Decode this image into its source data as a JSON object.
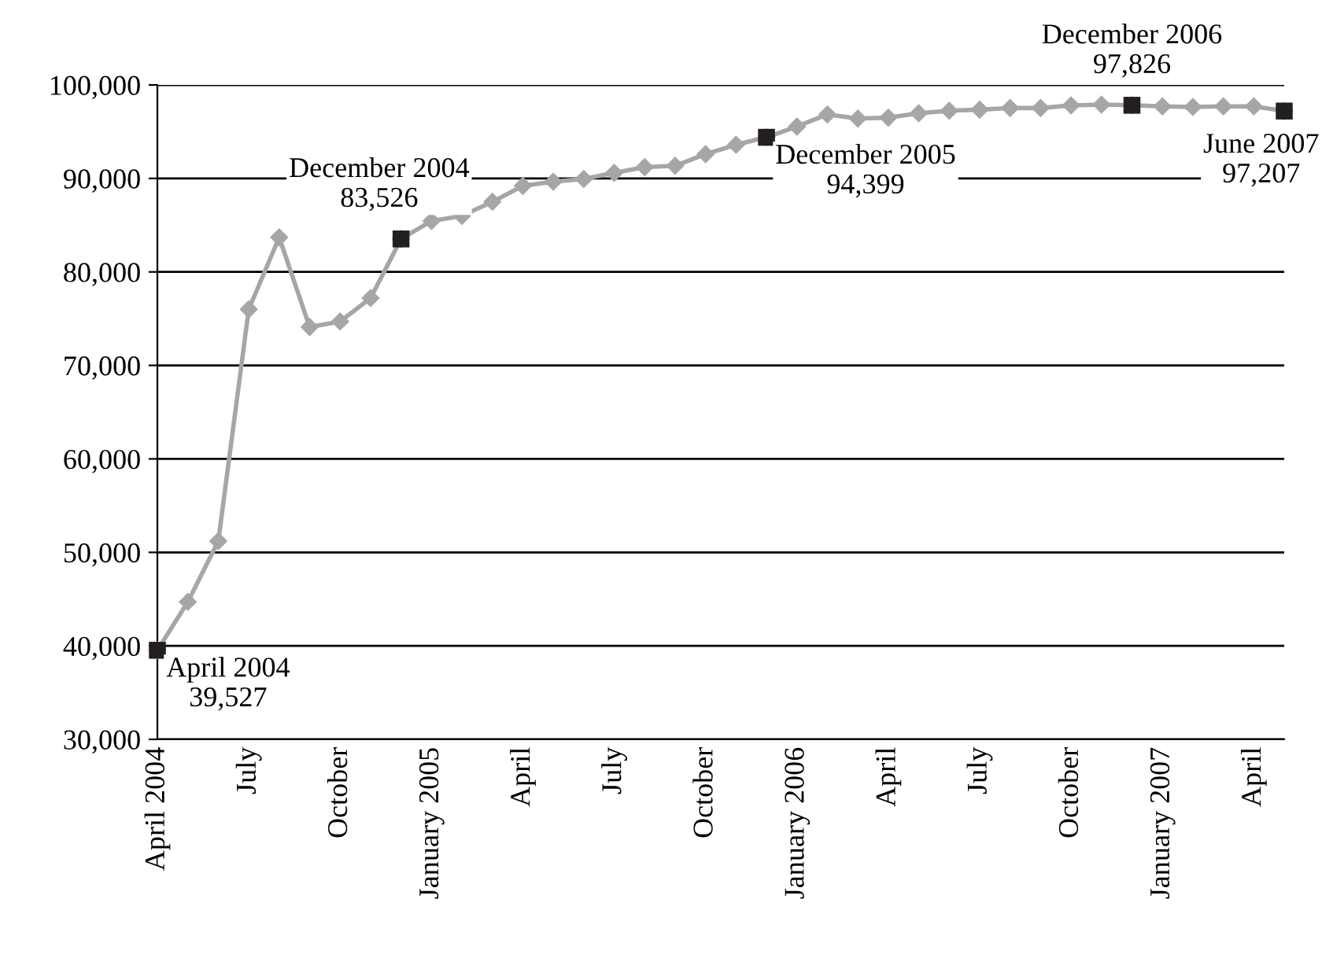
{
  "chart_data": {
    "type": "line",
    "categories": [
      "April 2004",
      null,
      null,
      "July",
      null,
      null,
      "October",
      null,
      null,
      "January 2005",
      null,
      null,
      "April",
      null,
      null,
      "July",
      null,
      null,
      "October",
      null,
      null,
      "January 2006",
      null,
      null,
      "April",
      null,
      null,
      "July",
      null,
      null,
      "October",
      null,
      null,
      "January 2007",
      null,
      null,
      "April",
      null
    ],
    "series": [
      {
        "color": "#a6a6a6",
        "marker": "diamond",
        "values": [
          39527,
          44700,
          51200,
          76000,
          83700,
          74100,
          74700,
          77200,
          83526,
          85450,
          86000,
          87500,
          89200,
          89650,
          89950,
          90600,
          91200,
          91350,
          92600,
          93600,
          94399,
          95550,
          96850,
          96400,
          96500,
          96970,
          97240,
          97360,
          97530,
          97530,
          97810,
          97900,
          97826,
          97700,
          97650,
          97700,
          97700,
          97207
        ]
      },
      {
        "type": "scatter",
        "color": "#231f20",
        "marker": "square",
        "values": [
          39527,
          null,
          null,
          null,
          null,
          null,
          null,
          null,
          83526,
          null,
          null,
          null,
          null,
          null,
          null,
          null,
          null,
          null,
          null,
          null,
          94399,
          null,
          null,
          null,
          null,
          null,
          null,
          null,
          null,
          null,
          null,
          null,
          97826,
          null,
          null,
          null,
          null,
          97207
        ],
        "value_labels": [
          "April 2004\n39,527",
          null,
          null,
          null,
          null,
          null,
          null,
          null,
          "December 2004\n83,526",
          null,
          null,
          null,
          null,
          null,
          null,
          null,
          null,
          null,
          null,
          null,
          "December 2005\n94,399",
          null,
          null,
          null,
          null,
          null,
          null,
          null,
          null,
          null,
          null,
          null,
          "December 2006\n97,826",
          null,
          null,
          null,
          null,
          "June 2007\n97,207"
        ]
      }
    ],
    "ylim": [
      30000,
      100000
    ],
    "yticks": [
      {
        "value": 30000,
        "label": "30,000"
      },
      {
        "value": 40000,
        "label": "40,000"
      },
      {
        "value": 50000,
        "label": "50,000"
      },
      {
        "value": 60000,
        "label": "60,000"
      },
      {
        "value": 70000,
        "label": "70,000"
      },
      {
        "value": 80000,
        "label": "80,000"
      },
      {
        "value": 90000,
        "label": "90,000"
      },
      {
        "value": 100000,
        "label": "100,000"
      }
    ],
    "grid": "y",
    "legend": false
  }
}
